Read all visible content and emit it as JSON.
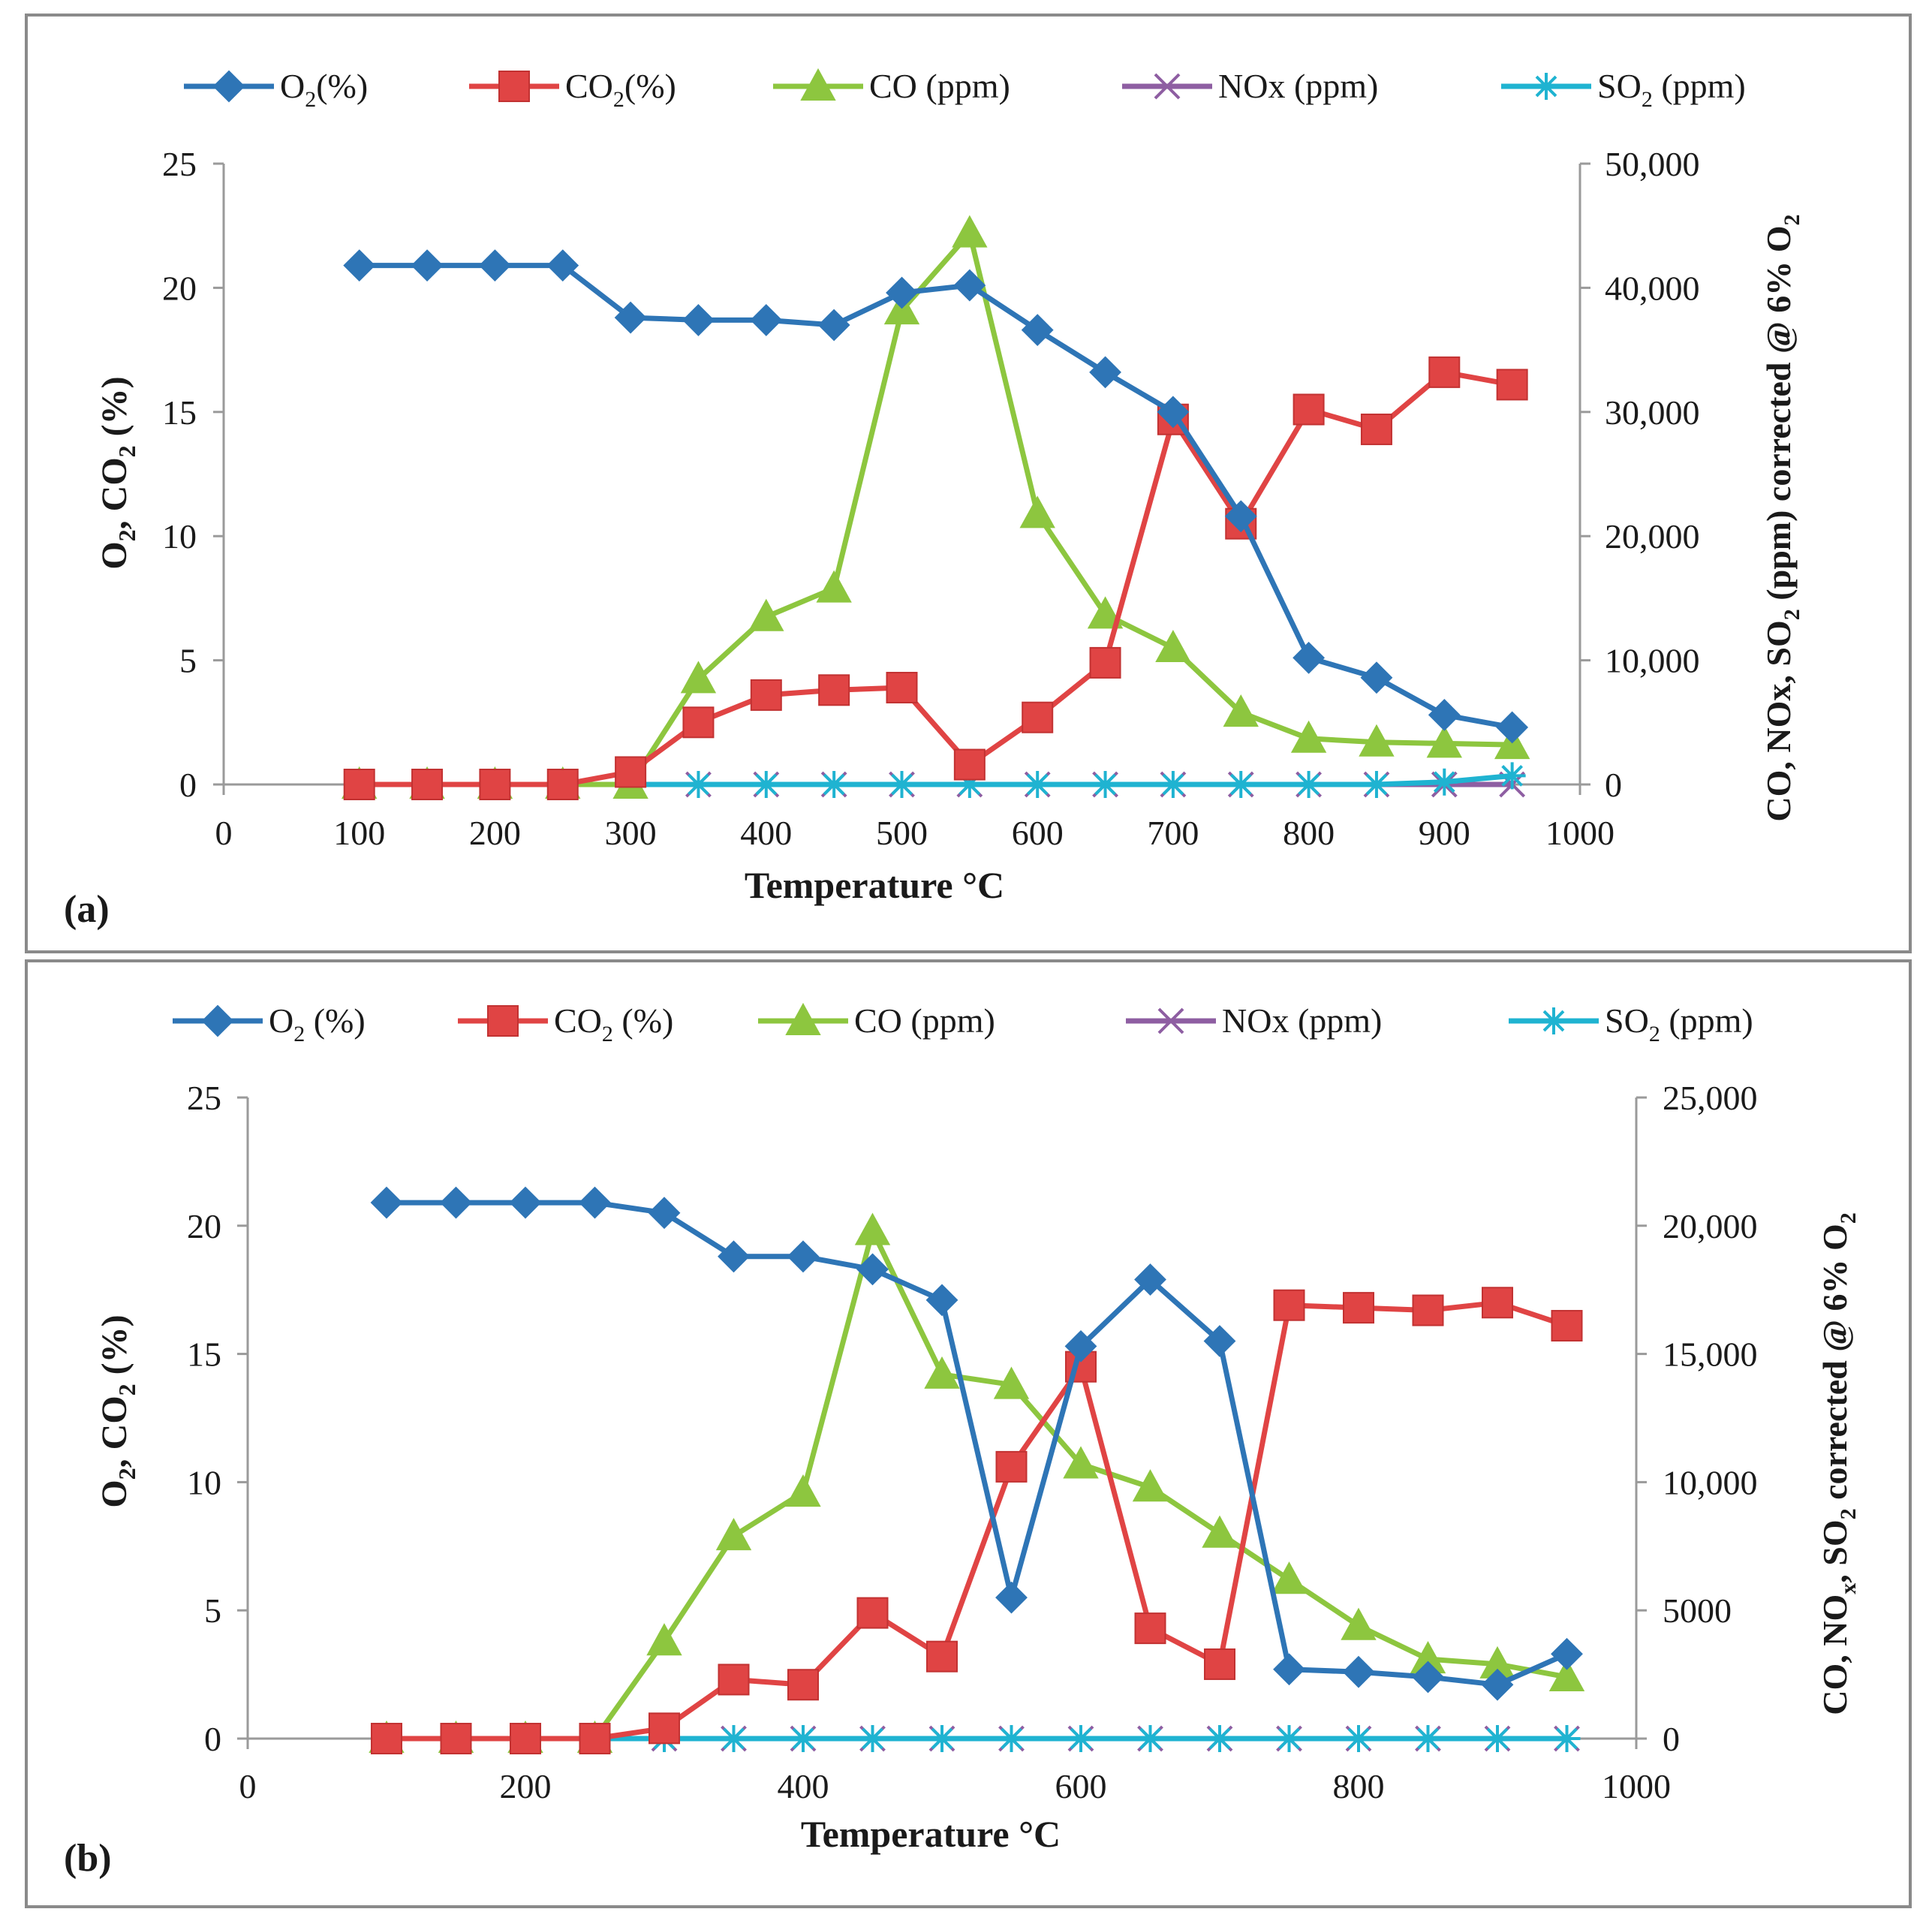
{
  "chart_data": [
    {
      "panel_label": "(a)",
      "type": "line",
      "title": "",
      "xlabel": "Temperature °C",
      "ylabel_left": "O2, CO2 (%)",
      "ylabel_right": "CO, NOx, SO2 (ppm) corrected @ 6% O2",
      "xlim": [
        0,
        1000
      ],
      "ylim_left": [
        0,
        25
      ],
      "ylim_right": [
        0,
        50000
      ],
      "x_ticks": [
        0,
        100,
        200,
        300,
        400,
        500,
        600,
        700,
        800,
        900,
        1000
      ],
      "x_tick_labels": [
        "0",
        "100",
        "200",
        "300",
        "400",
        "500",
        "600",
        "700",
        "800",
        "900",
        "1000"
      ],
      "y_left_ticks": [
        0,
        5,
        10,
        15,
        20,
        25
      ],
      "y_left_tick_labels": [
        "0",
        "5",
        "10",
        "15",
        "20",
        "25"
      ],
      "y_right_ticks": [
        0,
        10000,
        20000,
        30000,
        40000,
        50000
      ],
      "y_right_tick_labels": [
        "0",
        "10,000",
        "20,000",
        "30,000",
        "40,000",
        "50,000"
      ],
      "legend_position": "top",
      "x": [
        100,
        150,
        200,
        250,
        300,
        350,
        400,
        450,
        500,
        550,
        600,
        650,
        700,
        750,
        800,
        850,
        900,
        950
      ],
      "series": [
        {
          "name": "O2(%)",
          "legend_main": "O",
          "legend_sub": "2",
          "legend_rest": "(%)",
          "axis": "left",
          "color": "#2e75b6",
          "marker": "diamond",
          "values": [
            20.9,
            20.9,
            20.9,
            20.9,
            18.8,
            18.7,
            18.7,
            18.5,
            19.8,
            20.1,
            18.3,
            16.6,
            15.0,
            10.8,
            5.1,
            4.3,
            2.8,
            2.3
          ]
        },
        {
          "name": "CO2(%)",
          "legend_main": "CO",
          "legend_sub": "2",
          "legend_rest": "(%)",
          "axis": "left",
          "color": "#e04444",
          "marker": "square",
          "values": [
            0,
            0,
            0,
            0,
            0.5,
            2.5,
            3.6,
            3.8,
            3.9,
            0.8,
            2.7,
            4.9,
            14.7,
            10.5,
            15.1,
            14.3,
            16.6,
            16.1
          ]
        },
        {
          "name": "CO (ppm)",
          "legend_main": "CO (ppm)",
          "legend_sub": "",
          "legend_rest": "",
          "axis": "right",
          "color": "#8dc63f",
          "marker": "triangle",
          "values": [
            0,
            0,
            0,
            0,
            0,
            8500,
            13500,
            15800,
            38200,
            44400,
            21800,
            13700,
            11000,
            5800,
            3700,
            3400,
            3300,
            3200
          ]
        },
        {
          "name": "NOx (ppm)",
          "legend_main": "NOx (ppm)",
          "legend_sub": "",
          "legend_rest": "",
          "axis": "right",
          "color": "#8e5ea2",
          "marker": "x",
          "values": [
            0,
            0,
            0,
            0,
            0,
            0,
            0,
            0,
            0,
            0,
            0,
            0,
            0,
            0,
            0,
            0,
            0,
            0
          ]
        },
        {
          "name": "SO2 (ppm)",
          "legend_main": "SO",
          "legend_sub": "2",
          "legend_rest": " (ppm)",
          "axis": "right",
          "color": "#1fb3d1",
          "marker": "star",
          "values": [
            0,
            0,
            0,
            0,
            0,
            0,
            0,
            0,
            0,
            0,
            0,
            0,
            0,
            0,
            0,
            0,
            200,
            700
          ]
        }
      ]
    },
    {
      "panel_label": "(b)",
      "type": "line",
      "title": "",
      "xlabel": "Temperature °C",
      "ylabel_left": "O2, CO2 (%)",
      "ylabel_right": "CO, NOx, SO2 corrected @ 6% O2",
      "xlim": [
        0,
        1000
      ],
      "ylim_left": [
        0,
        25
      ],
      "ylim_right": [
        0,
        25000
      ],
      "x_ticks": [
        0,
        200,
        400,
        600,
        800,
        1000
      ],
      "x_tick_labels": [
        "0",
        "200",
        "400",
        "600",
        "800",
        "1000"
      ],
      "y_left_ticks": [
        0,
        5,
        10,
        15,
        20,
        25
      ],
      "y_left_tick_labels": [
        "0",
        "5",
        "10",
        "15",
        "20",
        "25"
      ],
      "y_right_ticks": [
        0,
        5000,
        10000,
        15000,
        20000,
        25000
      ],
      "y_right_tick_labels": [
        "0",
        "5000",
        "10,000",
        "15,000",
        "20,000",
        "25,000"
      ],
      "legend_position": "top",
      "x": [
        100,
        150,
        200,
        250,
        300,
        350,
        400,
        450,
        500,
        550,
        600,
        650,
        700,
        750,
        800,
        850,
        900,
        950
      ],
      "series": [
        {
          "name": "O2 (%)",
          "legend_main": "O",
          "legend_sub": "2",
          "legend_rest": " (%)",
          "axis": "left",
          "color": "#2e75b6",
          "marker": "diamond",
          "values": [
            20.9,
            20.9,
            20.9,
            20.9,
            20.5,
            18.8,
            18.8,
            18.3,
            17.1,
            5.5,
            15.3,
            17.9,
            15.5,
            2.7,
            2.6,
            2.4,
            2.1,
            3.3
          ]
        },
        {
          "name": "CO2 (%)",
          "legend_main": "CO",
          "legend_sub": "2",
          "legend_rest": " (%)",
          "axis": "left",
          "color": "#e04444",
          "marker": "square",
          "values": [
            0,
            0,
            0,
            0,
            0.4,
            2.3,
            2.1,
            4.9,
            3.2,
            10.6,
            14.5,
            4.3,
            2.9,
            16.9,
            16.8,
            16.7,
            17.0,
            16.1
          ]
        },
        {
          "name": "CO (ppm)",
          "legend_main": "CO (ppm)",
          "legend_sub": "",
          "legend_rest": "",
          "axis": "right",
          "color": "#8dc63f",
          "marker": "triangle",
          "values": [
            0,
            0,
            0,
            0,
            3800,
            7900,
            9600,
            19800,
            14200,
            13800,
            10700,
            9800,
            8000,
            6200,
            4400,
            3100,
            2900,
            2400
          ]
        },
        {
          "name": "NOx (ppm)",
          "legend_main": "NOx (ppm)",
          "legend_sub": "",
          "legend_rest": "",
          "axis": "right",
          "color": "#8e5ea2",
          "marker": "x",
          "values": [
            0,
            0,
            0,
            0,
            0,
            0,
            0,
            0,
            0,
            0,
            0,
            0,
            0,
            0,
            0,
            0,
            0,
            0
          ]
        },
        {
          "name": "SO2 (ppm)",
          "legend_main": "SO",
          "legend_sub": "2",
          "legend_rest": " (ppm)",
          "axis": "right",
          "color": "#1fb3d1",
          "marker": "star",
          "values": [
            0,
            0,
            0,
            0,
            0,
            0,
            0,
            0,
            0,
            0,
            0,
            0,
            0,
            0,
            0,
            0,
            0,
            0
          ]
        }
      ]
    }
  ]
}
